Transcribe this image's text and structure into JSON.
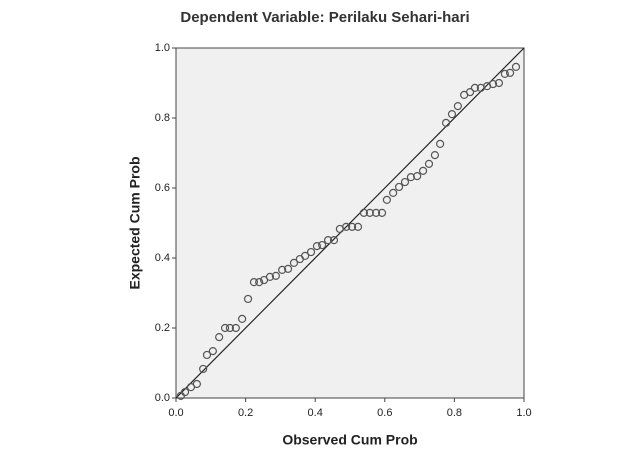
{
  "chart_data": {
    "type": "scatter",
    "title": "Dependent Variable: Perilaku Sehari-hari",
    "x_label": "Observed Cum Prob",
    "y_label": "Expected Cum Prob",
    "reference_line": true,
    "color": "#555555",
    "x": [
      0.014,
      0.026,
      0.043,
      0.06,
      0.078,
      0.089,
      0.106,
      0.124,
      0.141,
      0.155,
      0.172,
      0.19,
      0.207,
      0.224,
      0.239,
      0.253,
      0.27,
      0.287,
      0.305,
      0.322,
      0.339,
      0.356,
      0.371,
      0.388,
      0.405,
      0.42,
      0.437,
      0.454,
      0.471,
      0.489,
      0.506,
      0.523,
      0.54,
      0.557,
      0.575,
      0.592,
      0.606,
      0.624,
      0.641,
      0.658,
      0.675,
      0.693,
      0.71,
      0.727,
      0.744,
      0.759,
      0.776,
      0.793,
      0.81,
      0.828,
      0.845,
      0.859,
      0.876,
      0.894,
      0.911,
      0.928,
      0.945,
      0.96,
      0.977
    ],
    "values": [
      0.006,
      0.017,
      0.031,
      0.04,
      0.083,
      0.123,
      0.134,
      0.174,
      0.2,
      0.2,
      0.2,
      0.226,
      0.283,
      0.331,
      0.331,
      0.337,
      0.346,
      0.349,
      0.366,
      0.369,
      0.386,
      0.397,
      0.406,
      0.417,
      0.434,
      0.437,
      0.451,
      0.451,
      0.483,
      0.489,
      0.489,
      0.489,
      0.529,
      0.529,
      0.529,
      0.529,
      0.566,
      0.586,
      0.603,
      0.617,
      0.631,
      0.634,
      0.649,
      0.669,
      0.694,
      0.726,
      0.786,
      0.811,
      0.834,
      0.866,
      0.874,
      0.886,
      0.886,
      0.891,
      0.897,
      0.9,
      0.926,
      0.929,
      0.946
    ],
    "xlim": [
      0,
      1
    ],
    "ylim": [
      0,
      1
    ],
    "xticks": [
      {
        "value": 0,
        "label": "0.0"
      },
      0.2,
      0.4,
      0.6,
      0.8,
      {
        "value": 1,
        "label": "1.0"
      }
    ],
    "yticks": [
      {
        "value": 0,
        "label": "0.0"
      },
      0.2,
      0.4,
      0.6,
      0.8,
      {
        "value": 1,
        "label": "1.0"
      }
    ]
  }
}
